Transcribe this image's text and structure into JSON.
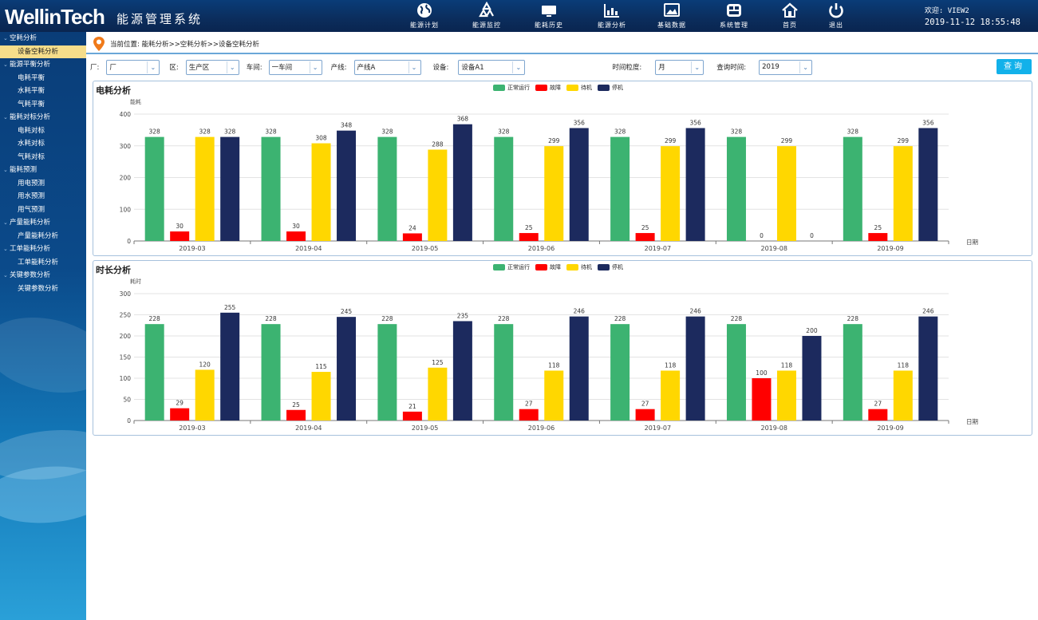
{
  "header": {
    "logo": "WellinTech",
    "system_name": "能源管理系统",
    "welcome": "欢迎: VIEW2",
    "datetime": "2019-11-12 18:55:48"
  },
  "nav": [
    {
      "label": "能源计划",
      "icon": "globe-icon"
    },
    {
      "label": "能源监控",
      "icon": "recycle-icon"
    },
    {
      "label": "能耗历史",
      "icon": "monitor-icon"
    },
    {
      "label": "能源分析",
      "icon": "bar-chart-icon"
    },
    {
      "label": "基础数据",
      "icon": "image-icon"
    },
    {
      "label": "系统管理",
      "icon": "window-icon"
    },
    {
      "label": "首页",
      "icon": "home-icon"
    },
    {
      "label": "退出",
      "icon": "power-icon"
    }
  ],
  "sidebar": [
    {
      "label": "空耗分析",
      "type": "group"
    },
    {
      "label": "设备空耗分析",
      "type": "item",
      "active": true
    },
    {
      "label": "能源平衡分析",
      "type": "group"
    },
    {
      "label": "电耗平衡",
      "type": "item"
    },
    {
      "label": "水耗平衡",
      "type": "item"
    },
    {
      "label": "气耗平衡",
      "type": "item"
    },
    {
      "label": "能耗对标分析",
      "type": "group"
    },
    {
      "label": "电耗对标",
      "type": "item"
    },
    {
      "label": "水耗对标",
      "type": "item"
    },
    {
      "label": "气耗对标",
      "type": "item"
    },
    {
      "label": "能耗预测",
      "type": "group"
    },
    {
      "label": "用电预测",
      "type": "item"
    },
    {
      "label": "用水预测",
      "type": "item"
    },
    {
      "label": "用气预测",
      "type": "item"
    },
    {
      "label": "产量能耗分析",
      "type": "group"
    },
    {
      "label": "产量能耗分析",
      "type": "item"
    },
    {
      "label": "工单能耗分析",
      "type": "group"
    },
    {
      "label": "工单能耗分析",
      "type": "item"
    },
    {
      "label": "关键参数分析",
      "type": "group"
    },
    {
      "label": "关键参数分析",
      "type": "item"
    }
  ],
  "breadcrumb": "当前位置: 能耗分析>>空耗分析>>设备空耗分析",
  "filters": {
    "factory_label": "厂:",
    "factory_value": "厂",
    "area_label": "区:",
    "area_value": "生产区",
    "workshop_label": "车间:",
    "workshop_value": "一车间",
    "line_label": "产线:",
    "line_value": "产线A",
    "device_label": "设备:",
    "device_value": "设备A1",
    "granularity_label": "时间粒度:",
    "granularity_value": "月",
    "query_time_label": "查询时间:",
    "query_time_value": "2019",
    "query_button": "查询"
  },
  "colors": {
    "normal": "#3cb371",
    "fault": "#ff0000",
    "standby": "#ffd700",
    "stop": "#1c2a5e"
  },
  "chart_data": [
    {
      "type": "bar",
      "title": "电耗分析",
      "ylabel": "能耗",
      "xlabel": "日期",
      "ylim": [
        0,
        400
      ],
      "yticks": [
        0,
        100,
        200,
        300,
        400
      ],
      "legend_position": "top-center",
      "categories": [
        "2019-03",
        "2019-04",
        "2019-05",
        "2019-06",
        "2019-07",
        "2019-08",
        "2019-09"
      ],
      "series": [
        {
          "name": "正常运行",
          "values": [
            328,
            328,
            328,
            328,
            328,
            328,
            328
          ]
        },
        {
          "name": "故障",
          "values": [
            30,
            30,
            24,
            25,
            25,
            0,
            25
          ]
        },
        {
          "name": "待机",
          "values": [
            328,
            308,
            288,
            299,
            299,
            299,
            299
          ]
        },
        {
          "name": "停机",
          "values": [
            328,
            348,
            368,
            356,
            356,
            0,
            356
          ]
        }
      ]
    },
    {
      "type": "bar",
      "title": "时长分析",
      "ylabel": "耗时",
      "xlabel": "日期",
      "ylim": [
        0,
        300
      ],
      "yticks": [
        0,
        50,
        100,
        150,
        200,
        250,
        300
      ],
      "legend_position": "top-center",
      "categories": [
        "2019-03",
        "2019-04",
        "2019-05",
        "2019-06",
        "2019-07",
        "2019-08",
        "2019-09"
      ],
      "series": [
        {
          "name": "正常运行",
          "values": [
            228,
            228,
            228,
            228,
            228,
            228,
            228
          ]
        },
        {
          "name": "故障",
          "values": [
            29,
            25,
            21,
            27,
            27,
            100,
            27
          ]
        },
        {
          "name": "待机",
          "values": [
            120,
            115,
            125,
            118,
            118,
            118,
            118
          ]
        },
        {
          "name": "停机",
          "values": [
            255,
            245,
            235,
            246,
            246,
            200,
            246
          ]
        }
      ]
    }
  ]
}
